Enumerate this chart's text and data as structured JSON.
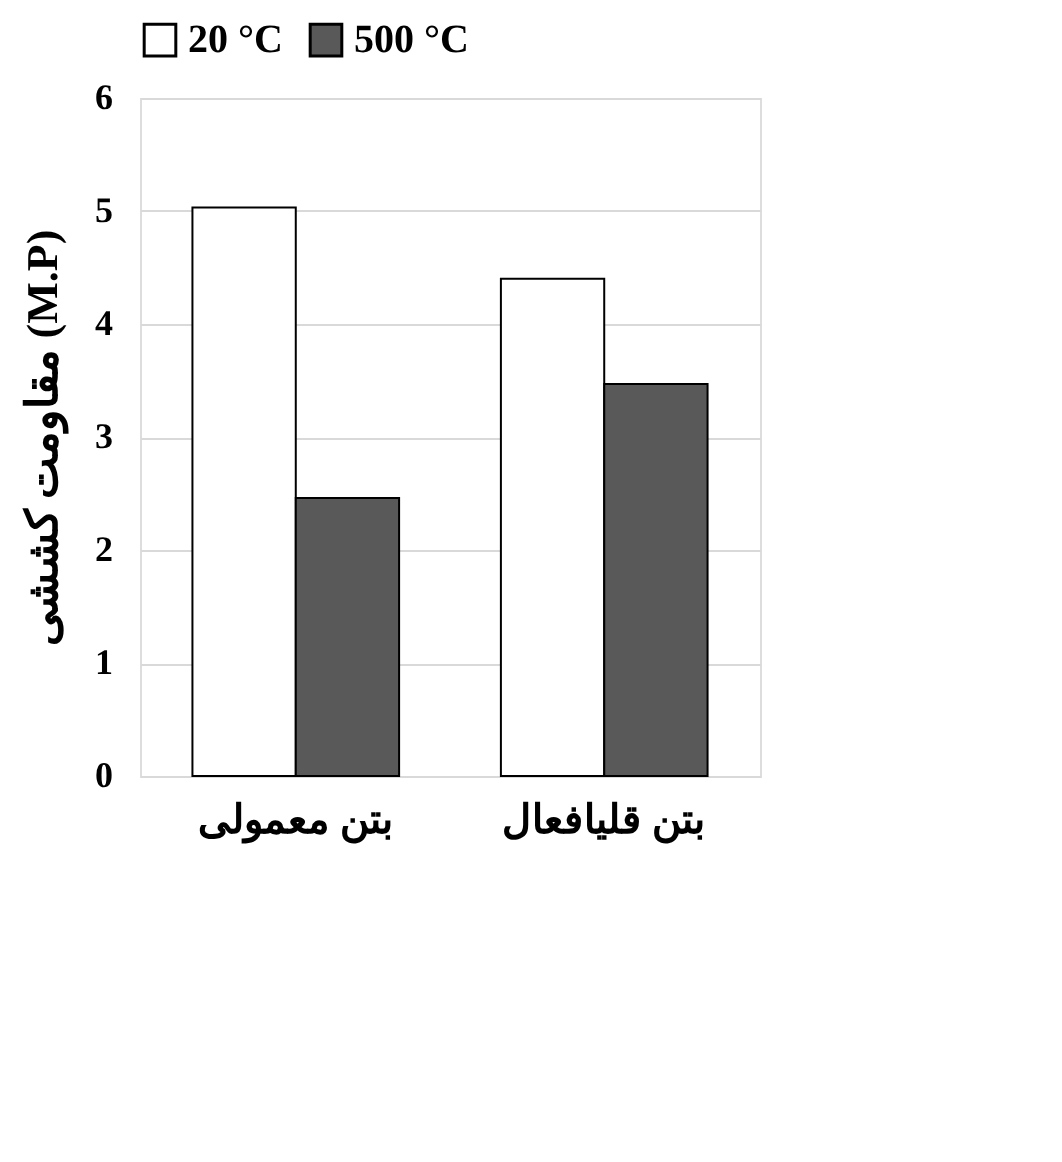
{
  "chart_data": {
    "type": "bar",
    "ylabel": "مقاومت کششی (M.P)",
    "categories": [
      "بتن معمولی",
      "بتن قلیافعال"
    ],
    "series": [
      {
        "name": "20 °C",
        "color": "#ffffff",
        "values": [
          5.03,
          4.4
        ]
      },
      {
        "name": "500 °C",
        "color": "#595959",
        "values": [
          2.46,
          3.47
        ]
      }
    ],
    "ylim": [
      0,
      6
    ],
    "yticks": [
      0,
      1,
      2,
      3,
      4,
      5,
      6
    ],
    "grid": "y",
    "legend": "top"
  }
}
